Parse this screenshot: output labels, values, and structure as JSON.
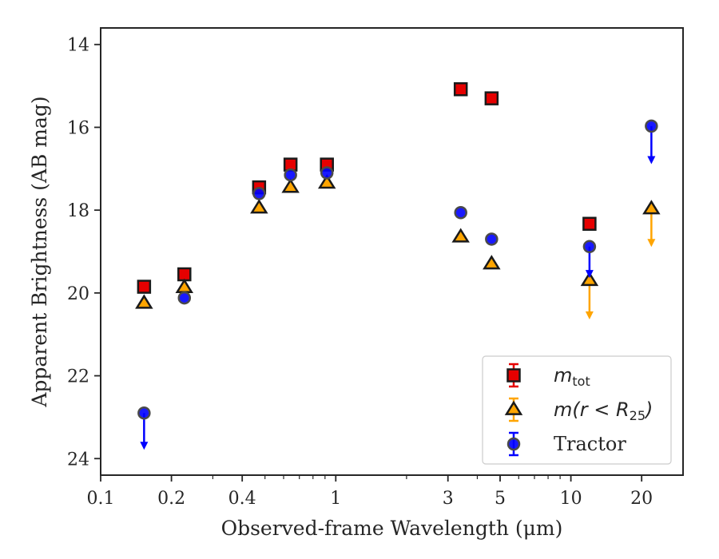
{
  "chart_data": {
    "type": "scatter",
    "xlabel": "Observed-frame Wavelength (μm)",
    "ylabel": "Apparent Brightness (AB mag)",
    "x_scale": "log",
    "xlim": [
      0.1,
      30
    ],
    "ylim": [
      24.4,
      13.6
    ],
    "y_inverted": true,
    "x_ticks": [
      0.1,
      0.2,
      0.4,
      1,
      3,
      5,
      10,
      20
    ],
    "x_tick_labels": [
      "0.1",
      "0.2",
      "0.4",
      "1",
      "3",
      "5",
      "10",
      "20"
    ],
    "y_ticks": [
      14,
      16,
      18,
      20,
      22,
      24
    ],
    "y_tick_labels": [
      "14",
      "16",
      "18",
      "20",
      "22",
      "24"
    ],
    "legend_position": "lower-right",
    "series": [
      {
        "name": "m_tot",
        "legend_main": "m",
        "legend_sub": "tot",
        "marker": "square",
        "color": "#e60000",
        "points": [
          {
            "x": 0.153,
            "y": 19.85
          },
          {
            "x": 0.227,
            "y": 19.55
          },
          {
            "x": 0.472,
            "y": 17.45
          },
          {
            "x": 0.642,
            "y": 16.9
          },
          {
            "x": 0.917,
            "y": 16.9
          },
          {
            "x": 3.4,
            "y": 15.08
          },
          {
            "x": 4.6,
            "y": 15.3
          },
          {
            "x": 12.0,
            "y": 18.33
          }
        ]
      },
      {
        "name": "m(r < R_25)",
        "legend_main": "m(r < R",
        "legend_sub": "25",
        "legend_end": ")",
        "marker": "triangle",
        "color": "#ffa500",
        "points": [
          {
            "x": 0.153,
            "y": 20.25
          },
          {
            "x": 0.227,
            "y": 19.87
          },
          {
            "x": 0.472,
            "y": 17.95
          },
          {
            "x": 0.642,
            "y": 17.45
          },
          {
            "x": 0.917,
            "y": 17.35
          },
          {
            "x": 3.4,
            "y": 18.65
          },
          {
            "x": 4.6,
            "y": 19.3
          },
          {
            "x": 12.0,
            "y": 19.7,
            "upper_limit": true,
            "arrow_to": 20.6
          },
          {
            "x": 22.0,
            "y": 17.97,
            "upper_limit": true,
            "arrow_to": 18.85
          }
        ]
      },
      {
        "name": "Tractor",
        "marker": "circle",
        "color": "#0000ff",
        "points": [
          {
            "x": 0.153,
            "y": 22.9,
            "upper_limit": true,
            "arrow_to": 23.75
          },
          {
            "x": 0.227,
            "y": 20.12
          },
          {
            "x": 0.472,
            "y": 17.6
          },
          {
            "x": 0.642,
            "y": 17.15
          },
          {
            "x": 0.917,
            "y": 17.1
          },
          {
            "x": 3.4,
            "y": 18.06
          },
          {
            "x": 4.6,
            "y": 18.7
          },
          {
            "x": 12.0,
            "y": 18.88,
            "upper_limit": true,
            "arrow_to": 19.6
          },
          {
            "x": 22.0,
            "y": 15.97,
            "upper_limit": true,
            "arrow_to": 16.85
          }
        ]
      }
    ]
  }
}
